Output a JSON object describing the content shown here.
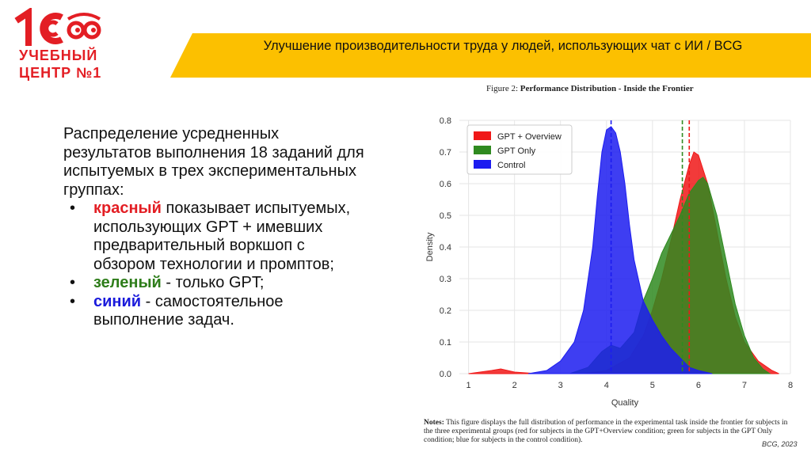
{
  "logo": {
    "mark": "1С",
    "line1": "УЧЕБНЫЙ",
    "line2": "ЦЕНТР №1"
  },
  "header": {
    "title": "Улучшение производительности труда у людей, использующих чат с ИИ / BCG"
  },
  "figure": {
    "label": "Figure 2:",
    "title": "Performance Distribution - Inside the Frontier"
  },
  "body": {
    "intro": "Распределение усредненных результатов выполнения 18 заданий для испытуемых в трех экспериментальных группах:",
    "bullets": [
      {
        "key": "красный",
        "rest": " показывает испытуемых, использующих GPT + имевших предварительный воркшоп с обзором технологии и промптов;"
      },
      {
        "key": "зеленый",
        "rest": " - только GPT;"
      },
      {
        "key": "синий",
        "rest": " - самостоятельное выполнение задач."
      }
    ]
  },
  "chart_data": {
    "type": "area",
    "xlabel": "Quality",
    "ylabel": "Density",
    "xlim": [
      0.8,
      8.0
    ],
    "ylim": [
      0,
      0.8
    ],
    "x_ticks": [
      "1",
      "2",
      "3",
      "4",
      "5",
      "6",
      "7",
      "8"
    ],
    "y_ticks": [
      "0.0",
      "0.1",
      "0.2",
      "0.3",
      "0.4",
      "0.5",
      "0.6",
      "0.7",
      "0.8"
    ],
    "grid": true,
    "legend_position": "top-left",
    "series": [
      {
        "name": "GPT + Overview",
        "color": "#f01818",
        "mean": 5.8,
        "x": [
          1.0,
          1.5,
          1.7,
          2.0,
          2.5,
          3.0,
          3.5,
          4.0,
          4.5,
          4.8,
          5.0,
          5.2,
          5.4,
          5.6,
          5.8,
          5.9,
          6.0,
          6.2,
          6.4,
          6.6,
          6.8,
          7.0,
          7.3,
          7.6,
          7.75
        ],
        "y": [
          0.0,
          0.01,
          0.015,
          0.005,
          0.0,
          0.0,
          0.0,
          0.01,
          0.05,
          0.12,
          0.2,
          0.3,
          0.42,
          0.55,
          0.66,
          0.7,
          0.69,
          0.6,
          0.45,
          0.3,
          0.18,
          0.1,
          0.04,
          0.01,
          0.0
        ]
      },
      {
        "name": "GPT Only",
        "color": "#2f8a20",
        "mean": 5.65,
        "x": [
          3.2,
          3.6,
          3.9,
          4.1,
          4.3,
          4.6,
          4.8,
          5.0,
          5.2,
          5.4,
          5.6,
          5.8,
          6.0,
          6.1,
          6.2,
          6.4,
          6.6,
          6.8,
          7.0,
          7.2,
          7.4,
          7.55
        ],
        "y": [
          0.0,
          0.02,
          0.07,
          0.09,
          0.08,
          0.13,
          0.23,
          0.3,
          0.38,
          0.44,
          0.5,
          0.57,
          0.61,
          0.62,
          0.6,
          0.5,
          0.36,
          0.22,
          0.12,
          0.05,
          0.015,
          0.0
        ]
      },
      {
        "name": "Control",
        "color": "#1c1cf0",
        "mean": 4.1,
        "x": [
          2.3,
          2.7,
          3.0,
          3.3,
          3.5,
          3.7,
          3.8,
          3.9,
          4.0,
          4.1,
          4.2,
          4.3,
          4.4,
          4.5,
          4.6,
          4.8,
          5.0,
          5.2,
          5.4,
          5.6,
          5.8,
          6.0,
          6.3
        ],
        "y": [
          0.0,
          0.01,
          0.04,
          0.1,
          0.2,
          0.4,
          0.56,
          0.7,
          0.77,
          0.78,
          0.76,
          0.7,
          0.6,
          0.47,
          0.36,
          0.23,
          0.17,
          0.12,
          0.08,
          0.05,
          0.02,
          0.01,
          0.0
        ]
      }
    ]
  },
  "notes": {
    "label": "Notes:",
    "text": " This figure displays the full distribution of performance in the experimental task inside the frontier for subjects in the three experimental groups (red for subjects in the GPT+Overview condition; green for subjects in the GPT Only condition; blue for subjects in the control condition)."
  },
  "credit": "BCG, 2023",
  "colors": {
    "brand_red": "#e31e24",
    "band_yellow": "#fcc000"
  }
}
